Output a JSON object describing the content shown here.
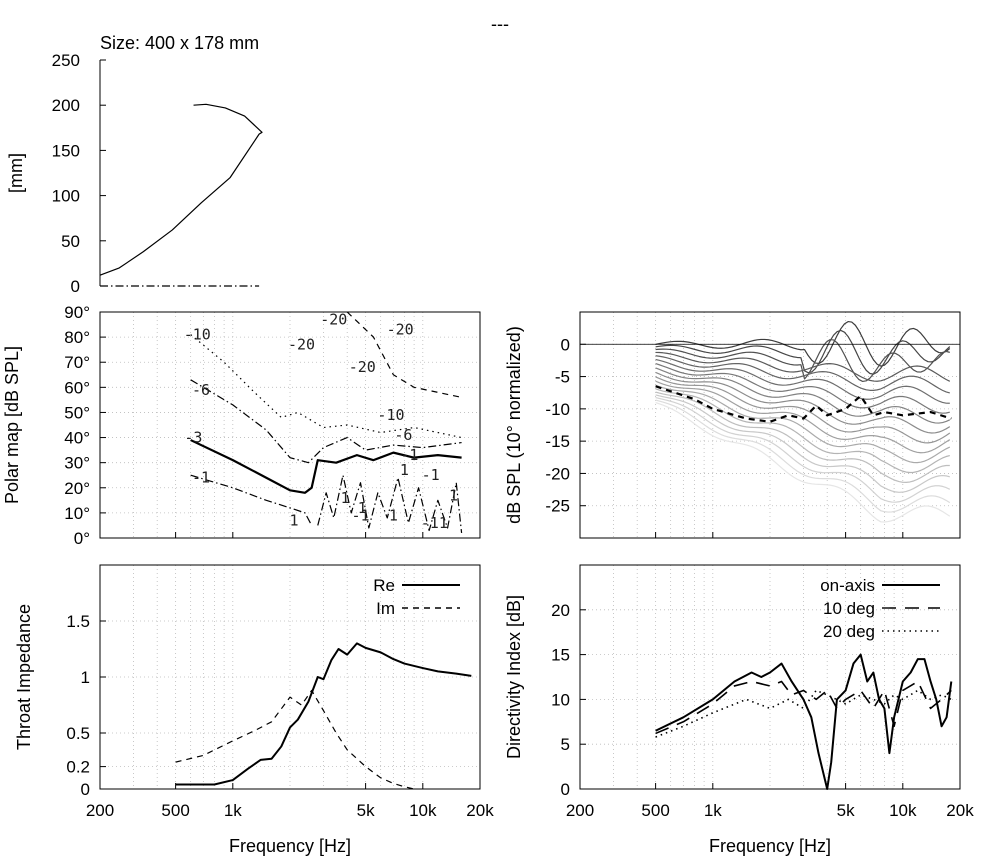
{
  "page": {
    "title": "---"
  },
  "chart_data": [
    {
      "id": "profile",
      "type": "line",
      "title": "Size: 400 x 178 mm",
      "xlabel": "",
      "ylabel": "[mm]",
      "ylim": [
        0,
        250
      ],
      "yticks": [
        0,
        50,
        100,
        150,
        200,
        250
      ],
      "xlim": [
        0,
        250
      ],
      "series": [
        {
          "style": "solid",
          "x": [
            0,
            20,
            45,
            75,
            105,
            135,
            165,
            168,
            150,
            130,
            110,
            97
          ],
          "y": [
            12,
            20,
            38,
            62,
            92,
            120,
            168,
            170,
            188,
            197,
            201,
            200
          ]
        },
        {
          "style": "dashdot",
          "x": [
            0,
            165
          ],
          "y": [
            0,
            0
          ]
        }
      ]
    },
    {
      "id": "polar-map",
      "type": "contour",
      "xlabel": "",
      "ylabel": "Polar map [dB SPL]",
      "xscale": "log",
      "xlim": [
        200,
        20000
      ],
      "xticks": [
        200,
        500,
        1000,
        5000,
        10000,
        20000
      ],
      "xticklabels": [
        "200",
        "500",
        "1k",
        "5k",
        "10k",
        "20k"
      ],
      "ylim": [
        0,
        90
      ],
      "yticks": [
        0,
        10,
        20,
        30,
        40,
        50,
        60,
        70,
        80,
        90
      ],
      "yticklabels": [
        "0°",
        "10°",
        "20°",
        "30°",
        "40°",
        "50°",
        "60°",
        "70°",
        "80°",
        "90°"
      ],
      "contours": [
        {
          "level": "-1",
          "style": "dashdot",
          "x": [
            600,
            1000,
            1500,
            2000,
            2400,
            2600
          ],
          "y": [
            25,
            20,
            15,
            12,
            10,
            5
          ]
        },
        {
          "level": "-3",
          "style": "solid",
          "x": [
            600,
            1000,
            1500,
            2000,
            2400,
            2600,
            2800,
            3500,
            4500,
            5500,
            7000,
            9000,
            12000,
            16000
          ],
          "y": [
            39,
            31,
            24,
            19,
            18,
            20,
            31,
            30,
            33,
            31,
            34,
            32,
            33,
            32
          ]
        },
        {
          "level": "-6",
          "style": "dashdot",
          "x": [
            600,
            1000,
            1500,
            2000,
            2500,
            3000,
            4000,
            5000,
            7000,
            10000,
            16000
          ],
          "y": [
            63,
            53,
            43,
            32,
            30,
            36,
            40,
            35,
            37,
            36,
            38
          ]
        },
        {
          "level": "-10",
          "style": "dotted",
          "x": [
            600,
            900,
            1300,
            1800,
            2200,
            3000,
            4000,
            6000,
            9000,
            16000
          ],
          "y": [
            81,
            70,
            58,
            48,
            50,
            44,
            45,
            42,
            44,
            40
          ]
        },
        {
          "level": "-20",
          "style": "dashed",
          "x": [
            4000,
            5500,
            7000,
            9000,
            12000,
            16000
          ],
          "y": [
            90,
            80,
            65,
            60,
            58,
            56
          ]
        }
      ],
      "contour_labels": [
        {
          "text": "-10",
          "x": 650,
          "y": 81
        },
        {
          "text": "-6",
          "x": 680,
          "y": 59
        },
        {
          "text": "-3",
          "x": 620,
          "y": 40
        },
        {
          "text": "-1",
          "x": 680,
          "y": 24
        },
        {
          "text": "-20",
          "x": 2300,
          "y": 77
        },
        {
          "text": "-20",
          "x": 3400,
          "y": 87
        },
        {
          "text": "-20",
          "x": 7600,
          "y": 83
        },
        {
          "text": "-20",
          "x": 4800,
          "y": 68
        },
        {
          "text": "-10",
          "x": 6800,
          "y": 49
        },
        {
          "text": "-6",
          "x": 7900,
          "y": 41
        },
        {
          "text": "-1",
          "x": 8500,
          "y": 33
        },
        {
          "text": "-1",
          "x": 11000,
          "y": 25
        },
        {
          "text": "1",
          "x": 2100,
          "y": 7
        },
        {
          "text": "1",
          "x": 3900,
          "y": 16
        },
        {
          "text": "-1",
          "x": 4700,
          "y": 9
        },
        {
          "text": "1",
          "x": 7000,
          "y": 9
        },
        {
          "text": "1",
          "x": 8000,
          "y": 27
        },
        {
          "text": "-11",
          "x": 11500,
          "y": 6
        },
        {
          "text": "1",
          "x": 14500,
          "y": 17
        },
        {
          "text": "1",
          "x": 4800,
          "y": 12
        }
      ]
    },
    {
      "id": "spl-normalized",
      "type": "line",
      "xlabel": "",
      "ylabel": "dB SPL (10° normalized)",
      "xscale": "log",
      "xlim": [
        200,
        20000
      ],
      "ylim": [
        -30,
        5
      ],
      "yticks": [
        0,
        -5,
        -10,
        -15,
        -20,
        -25
      ],
      "angles_count": 18,
      "highlighted_series": {
        "style": "dashed",
        "x": [
          500,
          800,
          1000,
          1500,
          2000,
          2500,
          3000,
          3500,
          4000,
          5000,
          6000,
          7000,
          8000,
          10000,
          14000,
          18000
        ],
        "y": [
          -6.5,
          -8.5,
          -10,
          -11.5,
          -12,
          -11,
          -11.5,
          -9.5,
          -11,
          -10,
          -8,
          -11,
          -10.5,
          -11,
          -10.5,
          -11.5
        ]
      }
    },
    {
      "id": "throat-impedance",
      "type": "line",
      "xlabel": "Frequency [Hz]",
      "ylabel": "Throat Impedance",
      "xscale": "log",
      "xlim": [
        200,
        20000
      ],
      "xticks": [
        200,
        500,
        1000,
        5000,
        10000,
        20000
      ],
      "xticklabels": [
        "200",
        "500",
        "1k",
        "5k",
        "10k",
        "20k"
      ],
      "ylim": [
        0,
        2
      ],
      "yticks": [
        0,
        0.2,
        0.5,
        1,
        1.5
      ],
      "yticklabels": [
        "0",
        "0.2",
        "0.5",
        "1",
        "1.5"
      ],
      "legend": "top-right",
      "series": [
        {
          "name": "Re",
          "style": "solid",
          "x": [
            500,
            600,
            800,
            1000,
            1200,
            1400,
            1600,
            1800,
            2000,
            2200,
            2500,
            2800,
            3000,
            3300,
            3600,
            4000,
            4500,
            5000,
            6000,
            7000,
            8000,
            10000,
            12000,
            15000,
            18000
          ],
          "y": [
            0.04,
            0.04,
            0.04,
            0.08,
            0.18,
            0.26,
            0.27,
            0.38,
            0.55,
            0.62,
            0.78,
            1.0,
            0.98,
            1.15,
            1.25,
            1.2,
            1.3,
            1.26,
            1.22,
            1.16,
            1.12,
            1.08,
            1.05,
            1.03,
            1.01
          ]
        },
        {
          "name": "Im",
          "style": "dashed",
          "x": [
            500,
            700,
            1000,
            1300,
            1600,
            2000,
            2300,
            2600,
            3000,
            3500,
            4000,
            5000,
            6000,
            7000,
            8000,
            9000
          ],
          "y": [
            0.24,
            0.3,
            0.43,
            0.52,
            0.6,
            0.82,
            0.75,
            0.88,
            0.7,
            0.5,
            0.35,
            0.2,
            0.1,
            0.05,
            0.02,
            0.0
          ]
        }
      ]
    },
    {
      "id": "directivity-index",
      "type": "line",
      "xlabel": "Frequency [Hz]",
      "ylabel": "Directivity Index [dB]",
      "xscale": "log",
      "xlim": [
        200,
        20000
      ],
      "xticks": [
        200,
        500,
        1000,
        5000,
        10000,
        20000
      ],
      "xticklabels": [
        "200",
        "500",
        "1k",
        "5k",
        "10k",
        "20k"
      ],
      "ylim": [
        0,
        25
      ],
      "yticks": [
        0,
        5,
        10,
        15,
        20
      ],
      "legend": "top-right",
      "series": [
        {
          "name": "on-axis",
          "style": "solid",
          "x": [
            500,
            700,
            1000,
            1300,
            1600,
            1800,
            2000,
            2300,
            2600,
            3000,
            3300,
            3600,
            4000,
            4200,
            4500,
            5000,
            5500,
            6000,
            6500,
            7000,
            7500,
            8000,
            8500,
            9000,
            10000,
            11000,
            12000,
            13000,
            14000,
            15000,
            16000,
            17000,
            18000
          ],
          "y": [
            6.5,
            8,
            10,
            12,
            13,
            12.5,
            13,
            14,
            12,
            10,
            8,
            4,
            0,
            3,
            10,
            11,
            14,
            15,
            12,
            13,
            10,
            9,
            4,
            8,
            12,
            13,
            14.5,
            14.5,
            12,
            10,
            7,
            8,
            12
          ]
        },
        {
          "name": "10 deg",
          "style": "dashed",
          "x": [
            500,
            700,
            1000,
            1300,
            1600,
            2000,
            2300,
            2600,
            3000,
            3500,
            4000,
            4500,
            5000,
            6000,
            7000,
            8000,
            9000,
            10000,
            12000,
            14000,
            16000,
            18000
          ],
          "y": [
            6.2,
            7.5,
            9.5,
            11.5,
            12,
            11.5,
            12,
            10.5,
            11,
            10,
            11,
            9,
            10,
            11,
            9,
            11,
            7,
            11,
            12,
            9,
            10,
            11
          ]
        },
        {
          "name": "20 deg",
          "style": "dotted",
          "x": [
            500,
            700,
            1000,
            1500,
            2000,
            2500,
            3000,
            3500,
            4000,
            5000,
            6000,
            7000,
            8000,
            9000,
            10000,
            12000,
            14000,
            16000,
            18000
          ],
          "y": [
            5.8,
            7,
            8.5,
            10,
            9,
            10,
            9,
            11,
            10.5,
            9.5,
            10.5,
            10,
            9.5,
            10.5,
            10,
            11,
            10,
            10.5,
            10
          ]
        }
      ]
    }
  ]
}
